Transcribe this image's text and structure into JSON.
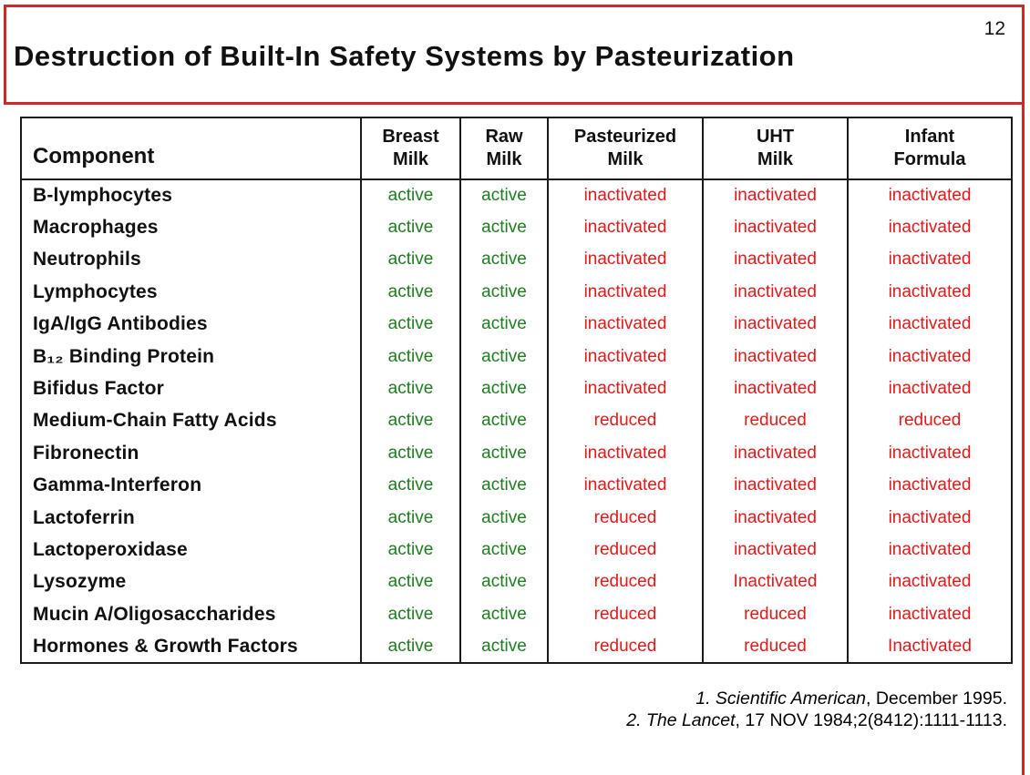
{
  "page_number": "12",
  "title": "Destruction of Built-In Safety Systems by Pasteurization",
  "colors": {
    "active_green": "#1e7d1e",
    "affected_red": "#e01a1a",
    "frame_red": "#cc2929"
  },
  "table": {
    "columns": [
      {
        "key": "component",
        "label": "Component"
      },
      {
        "key": "breast-milk",
        "label": "Breast\nMilk"
      },
      {
        "key": "raw-milk",
        "label": "Raw\nMilk"
      },
      {
        "key": "pasteurized-milk",
        "label": "Pasteurized\nMilk"
      },
      {
        "key": "uht-milk",
        "label": "UHT\nMilk"
      },
      {
        "key": "infant-formula",
        "label": "Infant\nFormula"
      }
    ],
    "rows": [
      {
        "component": "B-lymphocytes",
        "values": [
          "active",
          "active",
          "inactivated",
          "inactivated",
          "inactivated"
        ]
      },
      {
        "component": "Macrophages",
        "values": [
          "active",
          "active",
          "inactivated",
          "inactivated",
          "inactivated"
        ]
      },
      {
        "component": "Neutrophils",
        "values": [
          "active",
          "active",
          "inactivated",
          "inactivated",
          "inactivated"
        ]
      },
      {
        "component": "Lymphocytes",
        "values": [
          "active",
          "active",
          "inactivated",
          "inactivated",
          "inactivated"
        ]
      },
      {
        "component": "IgA/IgG Antibodies",
        "values": [
          "active",
          "active",
          "inactivated",
          "inactivated",
          "inactivated"
        ]
      },
      {
        "component": "B₁₂ Binding Protein",
        "values": [
          "active",
          "active",
          "inactivated",
          "inactivated",
          "inactivated"
        ]
      },
      {
        "component": "Bifidus Factor",
        "values": [
          "active",
          "active",
          "inactivated",
          "inactivated",
          "inactivated"
        ]
      },
      {
        "component": "Medium-Chain Fatty Acids",
        "values": [
          "active",
          "active",
          "reduced",
          "reduced",
          "reduced"
        ]
      },
      {
        "component": "Fibronectin",
        "values": [
          "active",
          "active",
          "inactivated",
          "inactivated",
          "inactivated"
        ]
      },
      {
        "component": "Gamma-Interferon",
        "values": [
          "active",
          "active",
          "inactivated",
          "inactivated",
          "inactivated"
        ]
      },
      {
        "component": "Lactoferrin",
        "values": [
          "active",
          "active",
          "reduced",
          "inactivated",
          "inactivated"
        ]
      },
      {
        "component": "Lactoperoxidase",
        "values": [
          "active",
          "active",
          "reduced",
          "inactivated",
          "inactivated"
        ]
      },
      {
        "component": "Lysozyme",
        "values": [
          "active",
          "active",
          "reduced",
          "Inactivated",
          "inactivated"
        ]
      },
      {
        "component": "Mucin A/Oligosaccharides",
        "values": [
          "active",
          "active",
          "reduced",
          "reduced",
          "inactivated"
        ]
      },
      {
        "component": "Hormones & Growth Factors",
        "values": [
          "active",
          "active",
          "reduced",
          "reduced",
          "Inactivated"
        ]
      }
    ]
  },
  "footnotes": [
    {
      "italic": "1. Scientific American",
      "rest": ", December 1995."
    },
    {
      "italic": "2. The Lancet",
      "rest": ", 17 NOV 1984;2(8412):1111-1113."
    }
  ]
}
